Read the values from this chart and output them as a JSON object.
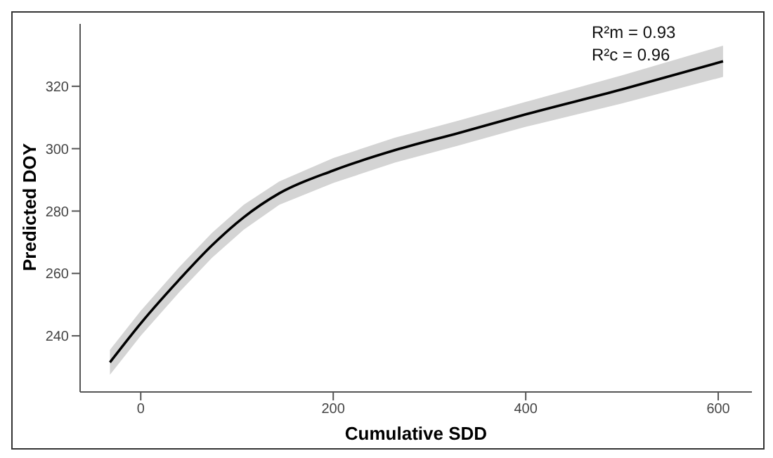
{
  "chart_data": {
    "type": "line",
    "xlabel": "Cumulative SDD",
    "ylabel": "Predicted DOY",
    "annotations": [
      "R²m = 0.93",
      "R²c = 0.96"
    ],
    "x": [
      -32,
      0,
      40,
      74,
      107,
      144,
      200,
      264,
      330,
      400,
      500,
      605
    ],
    "series": [
      {
        "color": "#000000",
        "values": [
          231.5,
          244,
          258,
          269,
          278,
          285.7,
          293,
          299.5,
          305,
          311,
          319,
          328
        ],
        "lower": [
          227.5,
          240,
          254,
          265,
          274,
          282,
          289,
          295.5,
          301,
          307,
          314.5,
          323
        ],
        "upper": [
          235.5,
          248,
          262,
          273,
          282,
          289.5,
          297,
          303.5,
          309,
          315,
          323.5,
          333
        ]
      }
    ],
    "xlim": [
      -63,
      635
    ],
    "ylim": [
      222,
      340
    ],
    "xticks": [
      0,
      200,
      400,
      600
    ],
    "yticks": [
      240,
      260,
      280,
      300,
      320
    ],
    "grid": false,
    "legend": false,
    "marker": "none",
    "line_style": "solid"
  }
}
